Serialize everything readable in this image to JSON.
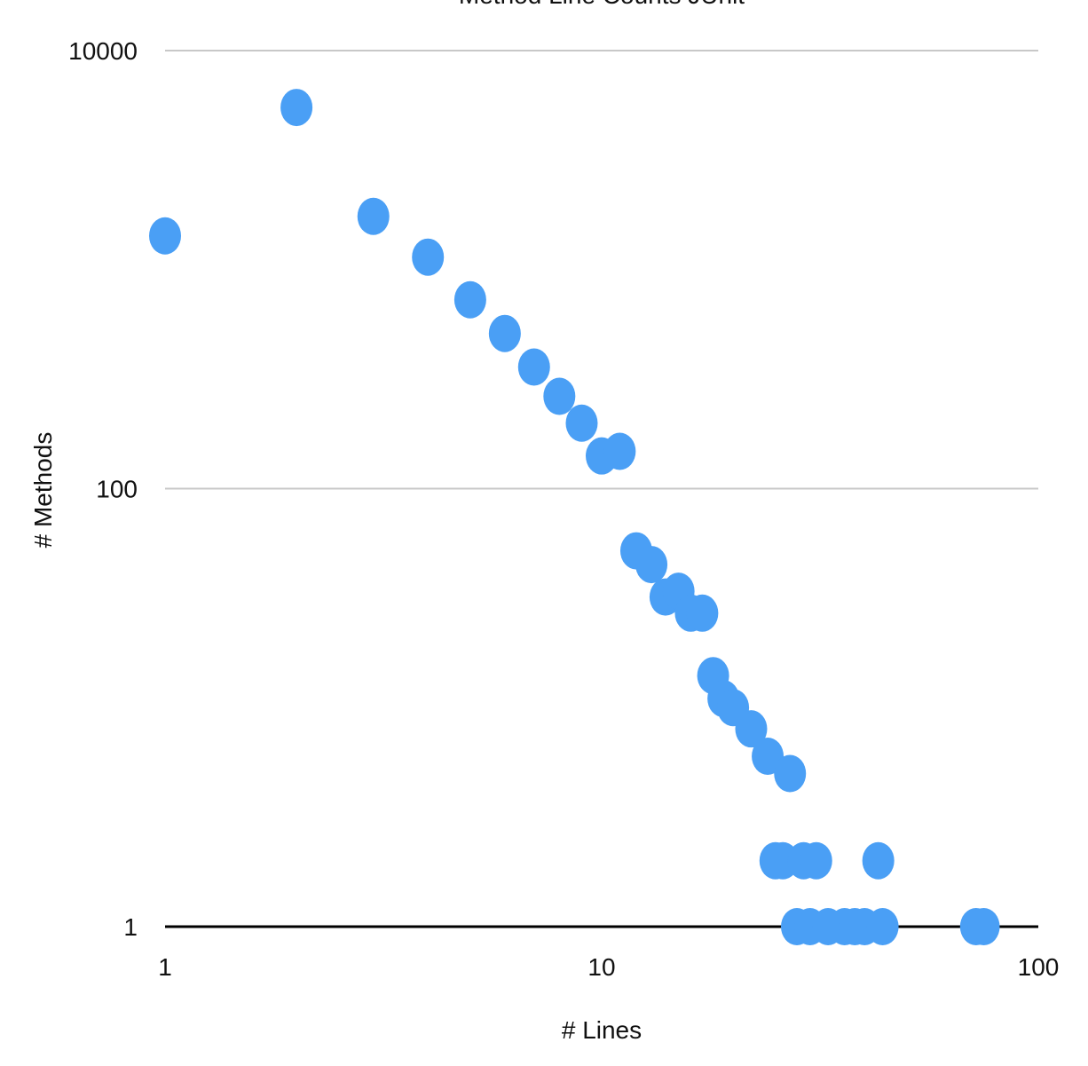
{
  "chart_data": {
    "type": "scatter",
    "title": "Method Line Counts JUnit",
    "x_label": "# Lines",
    "y_label": "# Methods",
    "x": [
      1,
      2,
      3,
      4,
      5,
      6,
      7,
      8,
      9,
      10,
      11,
      12,
      13,
      14,
      15,
      16,
      17,
      18,
      19,
      20,
      22,
      24,
      27,
      25,
      26,
      29,
      31,
      43,
      28,
      30,
      33,
      36,
      38,
      40,
      44,
      72,
      75
    ],
    "values": [
      1426,
      5500,
      1750,
      1140,
      728,
      511,
      359,
      264,
      199,
      141,
      148,
      52,
      45,
      32,
      34,
      27,
      27,
      14,
      11,
      10,
      8,
      6,
      5,
      2,
      2,
      2,
      2,
      2,
      1,
      1,
      1,
      1,
      1,
      1,
      1,
      1,
      1
    ],
    "color": "#4a9ff5",
    "xlim": [
      1,
      100
    ],
    "ylim": [
      1,
      10000
    ],
    "xticks": [
      1,
      10,
      100
    ],
    "yticks": [
      1,
      100,
      10000
    ],
    "log_x": true,
    "log_y": true,
    "grid": true
  }
}
